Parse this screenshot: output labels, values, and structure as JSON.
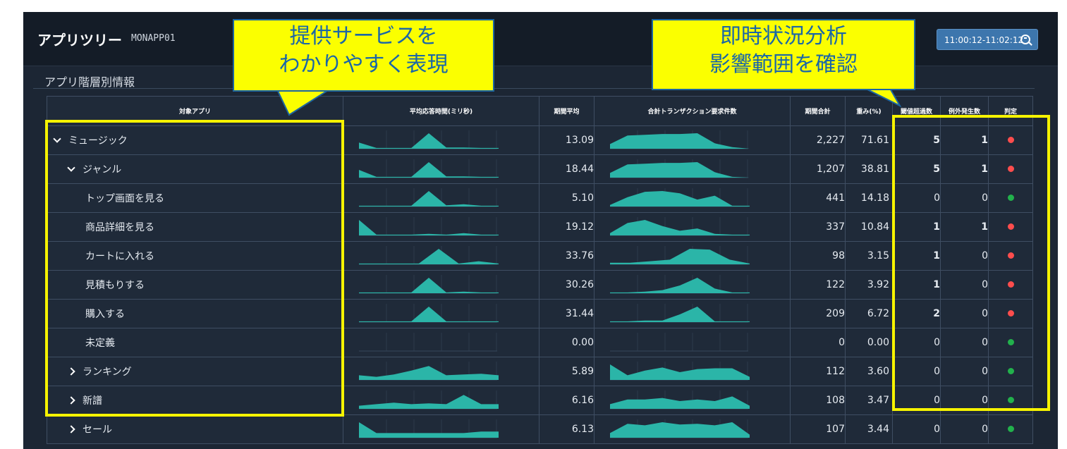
{
  "app": {
    "title": "アプリツリー",
    "app_id": "MONAPP01",
    "time_range": "11:00:12-11:02:12",
    "section_title": "アプリ階層別情報"
  },
  "columns": [
    "対象アプリ",
    "平均応答時間(ミリ秒)",
    "期間平均",
    "合計トランザクション要求件数",
    "期間合計",
    "重み(%)",
    "閾値超過数",
    "例外発生数",
    "判定"
  ],
  "colors": {
    "ok": "#22b14c",
    "ng": "#ff4d4d",
    "spark": "#2bb5a8",
    "highlight": "#f6f300"
  },
  "rows": [
    {
      "name": "ミュージック",
      "expand": "expanded",
      "indent": 0,
      "avg": "13.09",
      "total": "2,227",
      "weight": "71.61",
      "threshold": "5",
      "exception": "1",
      "status": "ng",
      "resp": [
        0.4,
        0.05,
        0.05,
        0.05,
        1,
        0.08,
        0.08,
        0.05,
        0.05
      ],
      "tx": [
        0.3,
        0.85,
        0.9,
        0.95,
        0.95,
        1,
        0.35,
        0.1,
        0
      ]
    },
    {
      "name": "ジャンル",
      "expand": "expanded",
      "indent": 1,
      "avg": "18.44",
      "total": "1,207",
      "weight": "38.81",
      "threshold": "5",
      "exception": "1",
      "status": "ng",
      "resp": [
        0.5,
        0.05,
        0.05,
        0.05,
        1,
        0.08,
        0.08,
        0.05,
        0.05
      ],
      "tx": [
        0.3,
        0.85,
        0.9,
        0.95,
        0.95,
        1,
        0.35,
        0.05,
        0
      ]
    },
    {
      "name": "トップ画面を見る",
      "expand": "none",
      "indent": 2,
      "avg": "5.10",
      "total": "441",
      "weight": "14.18",
      "threshold": "0",
      "exception": "0",
      "status": "ok",
      "resp": [
        0.05,
        0.05,
        0.05,
        0.05,
        1,
        0.08,
        0.15,
        0.05,
        0.05
      ],
      "tx": [
        0.1,
        0.6,
        0.95,
        1,
        0.85,
        0.45,
        0.7,
        0.05,
        0.05
      ]
    },
    {
      "name": "商品詳細を見る",
      "expand": "none",
      "indent": 2,
      "avg": "19.12",
      "total": "337",
      "weight": "10.84",
      "threshold": "1",
      "exception": "1",
      "status": "ng",
      "resp": [
        1,
        0.05,
        0.05,
        0.05,
        0.1,
        0.05,
        0.15,
        0.05,
        0.05
      ],
      "tx": [
        0.15,
        0.8,
        1,
        0.6,
        0.3,
        0.45,
        0.1,
        0.05,
        0.05
      ]
    },
    {
      "name": "カートに入れる",
      "expand": "none",
      "indent": 2,
      "avg": "33.76",
      "total": "98",
      "weight": "3.15",
      "threshold": "1",
      "exception": "0",
      "status": "ng",
      "resp": [
        0.05,
        0.05,
        0.05,
        0.05,
        1,
        0.05,
        0.2,
        0.05
      ],
      "tx": [
        0.1,
        0.1,
        0.2,
        0.3,
        1,
        0.95,
        0.3,
        0.05
      ]
    },
    {
      "name": "見積もりする",
      "expand": "none",
      "indent": 2,
      "avg": "30.26",
      "total": "122",
      "weight": "3.92",
      "threshold": "1",
      "exception": "0",
      "status": "ng",
      "resp": [
        0.05,
        0.05,
        0.05,
        0.05,
        1,
        0.05,
        0.1,
        0.05,
        0.05
      ],
      "tx": [
        0.05,
        0.05,
        0.1,
        0.2,
        0.5,
        1,
        0.3,
        0.05,
        0.05
      ]
    },
    {
      "name": "購入する",
      "expand": "none",
      "indent": 2,
      "avg": "31.44",
      "total": "209",
      "weight": "6.72",
      "threshold": "2",
      "exception": "0",
      "status": "ng",
      "resp": [
        0.05,
        0.05,
        0.05,
        0.05,
        1,
        0.05,
        0.05,
        0.05,
        0.05
      ],
      "tx": [
        0.05,
        0.05,
        0.1,
        0.1,
        0.5,
        1,
        0.05,
        0.05,
        0.05
      ]
    },
    {
      "name": "未定義",
      "expand": "none",
      "indent": 2,
      "avg": "0.00",
      "total": "0",
      "weight": "0.00",
      "threshold": "0",
      "exception": "0",
      "status": "ok",
      "resp": [],
      "tx": []
    },
    {
      "name": "ランキング",
      "expand": "collapsed",
      "indent": 1,
      "avg": "5.89",
      "total": "112",
      "weight": "3.60",
      "threshold": "0",
      "exception": "0",
      "status": "ok",
      "resp": [
        0.3,
        0.2,
        0.35,
        0.6,
        0.9,
        0.3,
        0.35,
        0.4,
        0.3
      ],
      "tx": [
        1,
        0.3,
        0.6,
        0.8,
        0.5,
        0.7,
        0.75,
        0.75,
        0.2
      ]
    },
    {
      "name": "新譜",
      "expand": "collapsed",
      "indent": 1,
      "avg": "6.16",
      "total": "108",
      "weight": "3.47",
      "threshold": "0",
      "exception": "0",
      "status": "ok",
      "resp": [
        0.2,
        0.3,
        0.4,
        0.3,
        0.35,
        0.3,
        0.9,
        0.3,
        0.3
      ],
      "tx": [
        0.3,
        0.6,
        0.6,
        0.7,
        0.5,
        0.6,
        0.5,
        0.8,
        0.2
      ]
    },
    {
      "name": "セール",
      "expand": "collapsed",
      "indent": 1,
      "avg": "6.13",
      "total": "107",
      "weight": "3.44",
      "threshold": "0",
      "exception": "0",
      "status": "ok",
      "resp": [
        1,
        0.3,
        0.3,
        0.3,
        0.3,
        0.3,
        0.3,
        0.4,
        0.4
      ],
      "tx": [
        0.3,
        0.9,
        0.8,
        1,
        0.85,
        0.9,
        0.8,
        1,
        0.2
      ]
    }
  ],
  "callouts": {
    "left": {
      "line1": "提供サービスを",
      "line2": "わかりやすく表現"
    },
    "right": {
      "line1": "即時状況分析",
      "line2": "影響範囲を確認"
    }
  }
}
